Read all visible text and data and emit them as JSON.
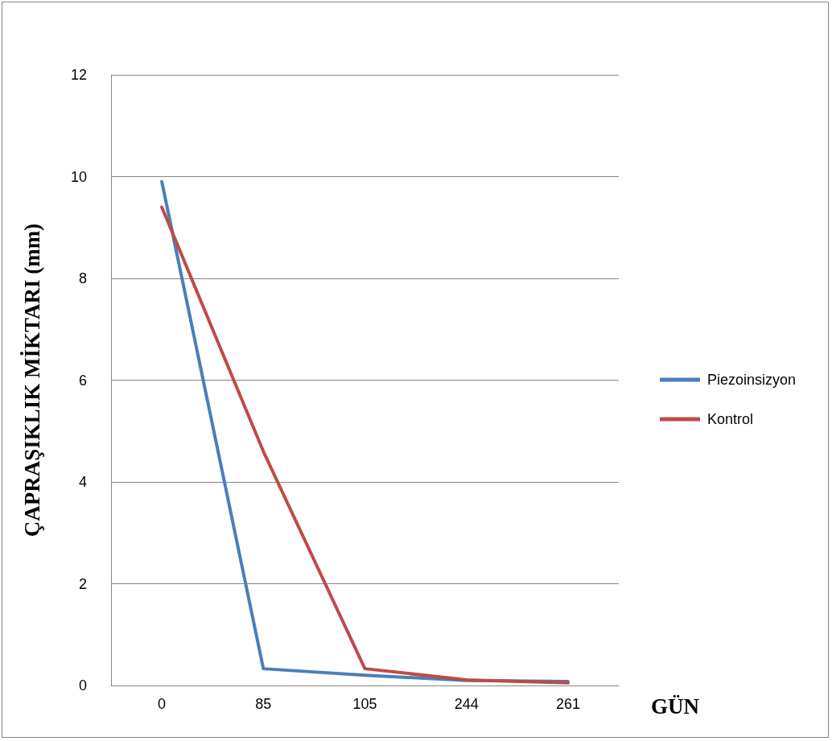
{
  "chart_data": {
    "type": "line",
    "xlabel": "GÜN",
    "ylabel": "ÇAPRAŞIKLIK MİKTARI (mm)",
    "categories": [
      "0",
      "85",
      "105",
      "244",
      "261"
    ],
    "series": [
      {
        "name": "Piezoinsizyon",
        "color": "#4a7ebb",
        "values": [
          9.9,
          0.33,
          0.2,
          0.1,
          0.08
        ]
      },
      {
        "name": "Kontrol",
        "color": "#be4b48",
        "values": [
          9.4,
          4.6,
          0.33,
          0.11,
          0.05
        ]
      }
    ],
    "ylim": [
      0,
      12
    ],
    "yticks": [
      0,
      2,
      4,
      6,
      8,
      10,
      12
    ],
    "grid": "y",
    "legend": "right",
    "marker": "none",
    "line_style": "solid"
  }
}
